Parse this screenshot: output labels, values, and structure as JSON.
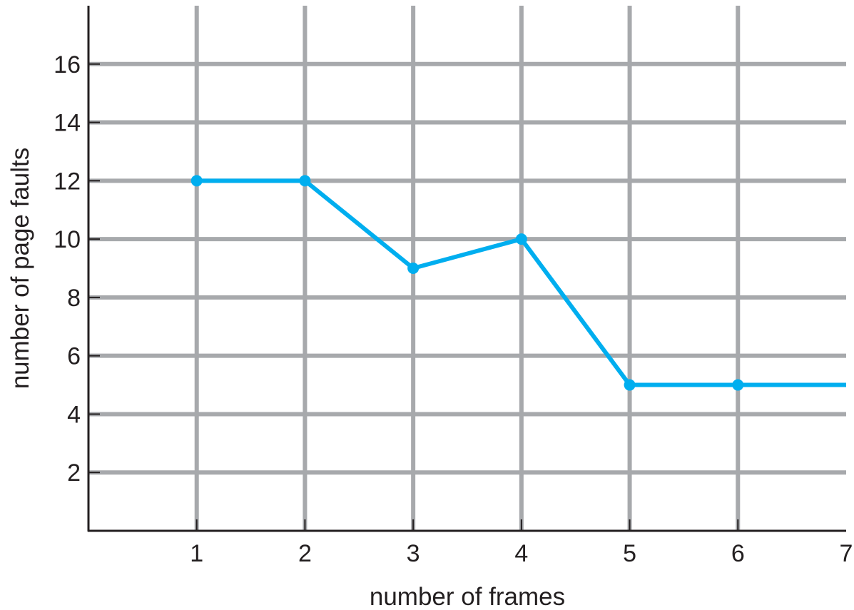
{
  "chart_data": {
    "type": "line",
    "title": "",
    "xlabel": "number of frames",
    "ylabel": "number of page faults",
    "x_ticks": [
      "1",
      "2",
      "3",
      "4",
      "5",
      "6",
      "7"
    ],
    "y_ticks": [
      "2",
      "4",
      "6",
      "8",
      "10",
      "12",
      "14",
      "16"
    ],
    "xlim": [
      0,
      7
    ],
    "ylim": [
      0,
      18
    ],
    "grid": true,
    "series": [
      {
        "points": [
          {
            "x": 1,
            "y": 12
          },
          {
            "x": 2,
            "y": 12
          },
          {
            "x": 3,
            "y": 9
          },
          {
            "x": 4,
            "y": 10
          },
          {
            "x": 5,
            "y": 5
          },
          {
            "x": 6,
            "y": 5
          },
          {
            "x": 7,
            "y": 5
          }
        ],
        "markers": [
          1,
          2,
          3,
          4,
          5,
          6
        ],
        "color": "#00aeef"
      }
    ],
    "colors": {
      "line": "#00aeef",
      "grid": "#a7a9ac",
      "axis": "#231f20",
      "text": "#231f20"
    }
  }
}
